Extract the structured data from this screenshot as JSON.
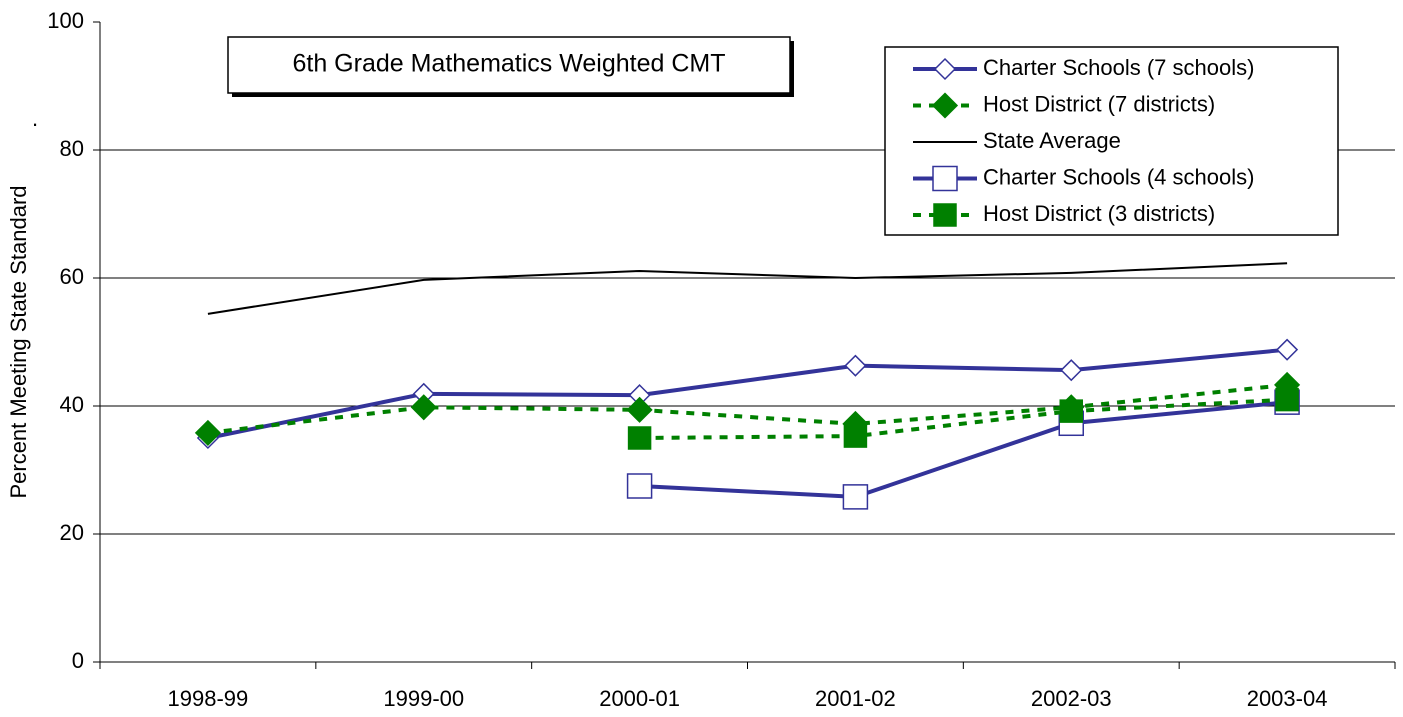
{
  "chart_data": {
    "type": "line",
    "title": "6th Grade Mathematics Weighted CMT",
    "y_label": "Percent Meeting State Standard",
    "annotations": [
      "."
    ],
    "categories": [
      "1998-99",
      "1999-00",
      "2000-01",
      "2001-02",
      "2002-03",
      "2003-04"
    ],
    "series": [
      {
        "name": "Charter Schools (7 schools)",
        "color": "#333399",
        "marker": "diamond-open",
        "dash": false,
        "values": [
          35,
          41.9,
          41.7,
          46.3,
          45.6,
          48.8
        ]
      },
      {
        "name": "Host District (7 districts)",
        "color": "#008000",
        "marker": "diamond-filled",
        "dash": true,
        "values": [
          35.8,
          39.8,
          39.4,
          37.2,
          39.8,
          43.3
        ]
      },
      {
        "name": "State Average",
        "color": "#000000",
        "marker": "none",
        "dash": false,
        "values": [
          54.4,
          59.7,
          61.1,
          60,
          60.8,
          62.3
        ]
      },
      {
        "name": "Charter Schools (4 schools)",
        "color": "#333399",
        "marker": "square-open",
        "dash": false,
        "values": [
          null,
          null,
          27.5,
          25.8,
          37.3,
          40.6
        ]
      },
      {
        "name": "Host District (3 districts)",
        "color": "#008000",
        "marker": "square-filled",
        "dash": true,
        "values": [
          null,
          null,
          35,
          35.3,
          39.2,
          41
        ]
      }
    ],
    "ylim": [
      0,
      100
    ],
    "yticks": [
      0,
      20,
      40,
      60,
      80,
      100
    ],
    "grid": true
  }
}
